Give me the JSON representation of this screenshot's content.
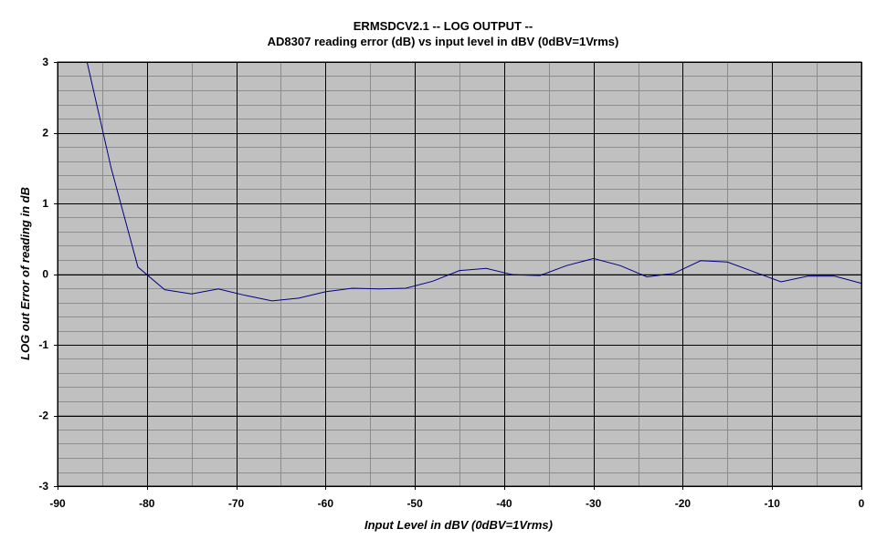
{
  "chart_data": {
    "type": "line",
    "title": "ERMSDCV2.1 -- LOG OUTPUT --",
    "subtitle": "AD8307 reading error (dB) vs input level in dBV (0dBV=1Vrms)",
    "xlabel": "Input Level in dBV (0dBV=1Vrms)",
    "ylabel": "LOG  out Error of reading in dB",
    "xlim": [
      -90,
      0
    ],
    "ylim": [
      -3,
      3
    ],
    "x_ticks": [
      -90,
      -80,
      -70,
      -60,
      -50,
      -40,
      -30,
      -20,
      -10,
      0
    ],
    "y_ticks": [
      3,
      2,
      1,
      0,
      -1,
      -2,
      -3
    ],
    "x_ticks_text": [
      "-90",
      "-80",
      "-70",
      "-60",
      "-50",
      "-40",
      "-30",
      "-20",
      "-10",
      "0"
    ],
    "y_ticks_text": [
      "3",
      "2",
      "1",
      "0",
      "-1",
      "-2",
      "-3"
    ],
    "grid": true,
    "colors": {
      "plot_background": "#c0c0c0",
      "line": "#000080",
      "major_grid": "#000000",
      "minor_grid": "#8c8c8c"
    },
    "series": [
      {
        "x": [
          -86.7,
          -84,
          -81,
          -78,
          -75,
          -72,
          -69,
          -66,
          -63,
          -60,
          -57,
          -54,
          -51,
          -48,
          -45,
          -42,
          -39,
          -36,
          -33,
          -30,
          -27,
          -24,
          -21,
          -18,
          -15,
          -12,
          -9,
          -6,
          -3,
          0
        ],
        "y": [
          3.0,
          1.5,
          0.1,
          -0.22,
          -0.28,
          -0.21,
          -0.3,
          -0.38,
          -0.34,
          -0.25,
          -0.2,
          -0.21,
          -0.2,
          -0.1,
          0.05,
          0.08,
          -0.01,
          -0.02,
          0.12,
          0.22,
          0.12,
          -0.04,
          0.01,
          0.19,
          0.17,
          0.03,
          -0.11,
          -0.03,
          -0.03,
          -0.13
        ]
      }
    ]
  }
}
